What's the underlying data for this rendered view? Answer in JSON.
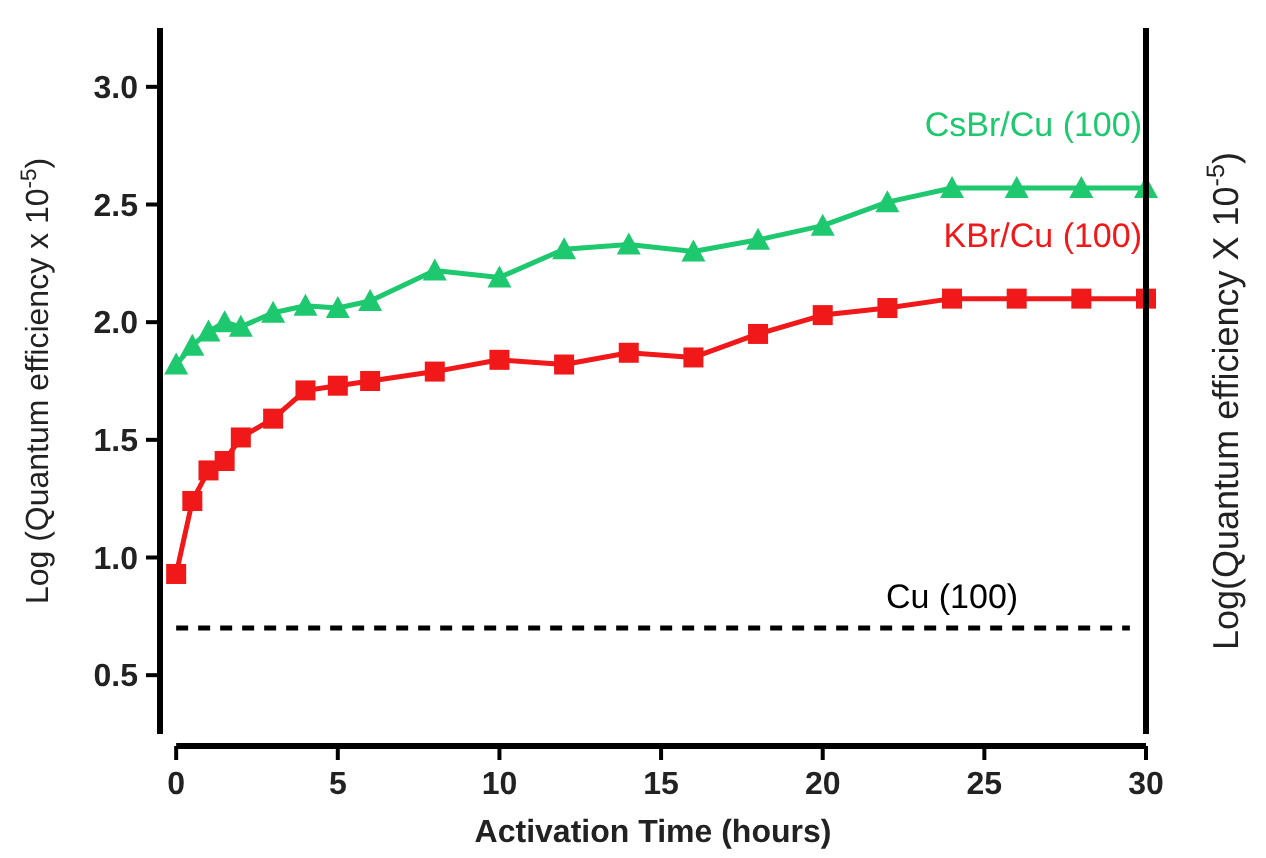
{
  "chart_data": {
    "type": "line",
    "xlabel": "Activation Time (hours)",
    "ylabel": "Log (Quantum efficiency x 10$^{-5}$)",
    "y2label": "Log(Quantum efficiency X 10$^{-5}$)",
    "x": [
      0,
      0.5,
      1,
      1.5,
      2,
      3,
      4,
      5,
      6,
      8,
      10,
      12,
      14,
      16,
      18,
      20,
      22,
      24,
      26,
      28,
      30
    ],
    "xlim": [
      -0.5,
      30
    ],
    "xticks": [
      0,
      5,
      10,
      15,
      20,
      25,
      30
    ],
    "ylim": [
      0.25,
      3.25
    ],
    "yticks": [
      0.5,
      {
        "value": 1,
        "label": "1.0"
      },
      1.5,
      {
        "value": 2,
        "label": "2.0"
      },
      2.5,
      {
        "value": 3,
        "label": "3.0"
      }
    ],
    "series": [
      {
        "name": "CsBr/Cu (100)",
        "color": "#1ec86e",
        "marker": "triangle",
        "values": [
          1.82,
          1.9,
          1.96,
          2.0,
          1.98,
          2.04,
          2.07,
          2.06,
          2.09,
          2.22,
          2.19,
          2.31,
          2.33,
          2.3,
          2.35,
          2.41,
          2.51,
          2.57,
          2.57,
          2.57,
          2.57
        ]
      },
      {
        "name": "KBr/Cu (100)",
        "color": "#f01818",
        "marker": "square",
        "values": [
          0.93,
          1.24,
          1.37,
          1.41,
          1.51,
          1.59,
          1.71,
          1.73,
          1.75,
          1.79,
          1.84,
          1.82,
          1.87,
          1.85,
          1.95,
          2.03,
          2.06,
          2.1,
          2.1,
          2.1,
          2.1
        ]
      }
    ],
    "ref_lines": [
      {
        "axis": "y",
        "value": 0.7,
        "label": "Cu (100)",
        "color": "#000000",
        "line_style": "dashed"
      }
    ],
    "grid": false
  }
}
